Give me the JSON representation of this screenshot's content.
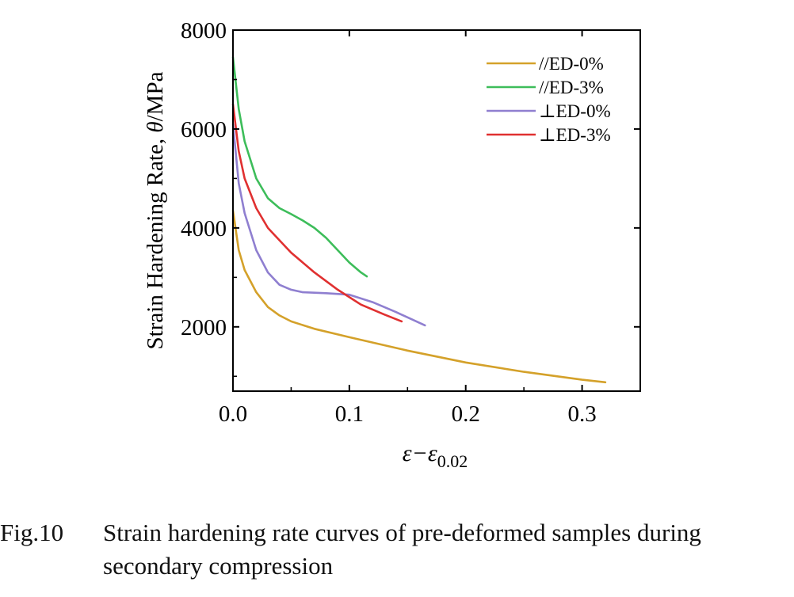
{
  "chart_data": {
    "type": "line",
    "ylabel_text": "Strain Hardening Rate, ",
    "ylabel_theta": "θ",
    "ylabel_unit": "/MPa",
    "xlabel_main": "ε−ε",
    "xlabel_sub": "0.02",
    "xlim": [
      0,
      0.35
    ],
    "ylim": [
      700,
      8000
    ],
    "xticks": [
      0.0,
      0.1,
      0.2,
      0.3
    ],
    "xtick_labels": [
      "0.0",
      "0.1",
      "0.2",
      "0.3"
    ],
    "yticks": [
      2000,
      4000,
      6000,
      8000
    ],
    "ytick_labels": [
      "2000",
      "4000",
      "6000",
      "8000"
    ],
    "legend_position": "top-right",
    "series": [
      {
        "name": "//ED-0%",
        "color": "#d4a12a",
        "x": [
          0,
          0.005,
          0.01,
          0.02,
          0.03,
          0.04,
          0.05,
          0.07,
          0.1,
          0.15,
          0.2,
          0.25,
          0.3,
          0.32
        ],
        "y": [
          4350,
          3550,
          3150,
          2700,
          2400,
          2230,
          2110,
          1960,
          1790,
          1520,
          1280,
          1090,
          930,
          880
        ]
      },
      {
        "name": "//ED-3%",
        "color": "#3dbd5a",
        "x": [
          0,
          0.005,
          0.01,
          0.02,
          0.03,
          0.04,
          0.05,
          0.06,
          0.07,
          0.08,
          0.09,
          0.1,
          0.11,
          0.115
        ],
        "y": [
          7450,
          6400,
          5750,
          5000,
          4600,
          4400,
          4280,
          4150,
          4000,
          3800,
          3550,
          3300,
          3100,
          3020
        ]
      },
      {
        "name": "⊥ED-0%",
        "color": "#8f7fd0",
        "x": [
          0,
          0.005,
          0.01,
          0.02,
          0.03,
          0.04,
          0.05,
          0.06,
          0.08,
          0.1,
          0.12,
          0.14,
          0.165
        ],
        "y": [
          6100,
          4900,
          4300,
          3550,
          3100,
          2850,
          2750,
          2700,
          2680,
          2650,
          2500,
          2300,
          2030
        ]
      },
      {
        "name": "⊥ED-3%",
        "color": "#e03030",
        "x": [
          0,
          0.005,
          0.01,
          0.02,
          0.03,
          0.04,
          0.05,
          0.07,
          0.09,
          0.11,
          0.13,
          0.145
        ],
        "y": [
          6500,
          5550,
          5000,
          4400,
          4000,
          3750,
          3500,
          3100,
          2750,
          2450,
          2250,
          2110
        ]
      }
    ]
  },
  "caption": {
    "label": "Fig.10",
    "line1": "Strain hardening rate curves of pre-deformed samples during",
    "line2": "secondary compression"
  }
}
